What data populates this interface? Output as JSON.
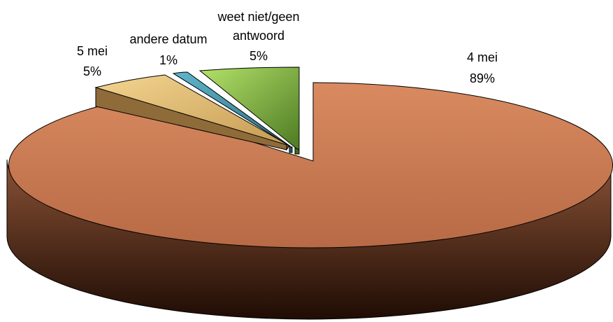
{
  "chart_data": {
    "type": "pie",
    "title": "",
    "slices": [
      {
        "label": "4 mei",
        "value": 89,
        "value_label": "89%",
        "color": "#d4835a"
      },
      {
        "label": "5 mei",
        "value": 5,
        "value_label": "5%",
        "color": "#f0cf8a"
      },
      {
        "label": "andere datum",
        "value": 1,
        "value_label": "1%",
        "color": "#4aa2b8"
      },
      {
        "label_lines": [
          "weet niet/geen",
          "antwoord"
        ],
        "label": "weet niet/geen antwoord",
        "value": 5,
        "value_label": "5%",
        "color": "#a9d65e"
      }
    ],
    "legend": "none",
    "style": "3d-exploded"
  }
}
